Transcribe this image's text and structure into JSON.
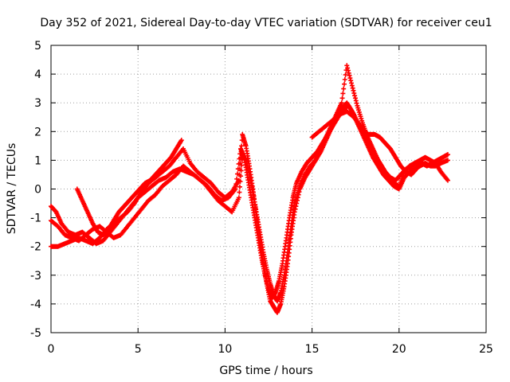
{
  "chart_data": {
    "type": "scatter",
    "title": "Day 352 of 2021, Sidereal Day-to-day VTEC variation (SDTVAR) for receiver ceu1",
    "xlabel": "GPS time / hours",
    "ylabel": "SDTVAR / TECUs",
    "xlim": [
      0,
      25
    ],
    "ylim": [
      -5,
      5
    ],
    "x_ticks": [
      "0",
      "5",
      "10",
      "15",
      "20",
      "25"
    ],
    "y_ticks": [
      "-5",
      "-4",
      "-3",
      "-2",
      "-1",
      "0",
      "1",
      "2",
      "3",
      "4",
      "5"
    ],
    "grid": true,
    "marker": "+",
    "color": "#ff0000",
    "series": [
      {
        "x": [
          0.0,
          0.3,
          0.6,
          1.0,
          1.4,
          1.8,
          2.2,
          2.6,
          3.0,
          3.4,
          3.8,
          4.2,
          4.6,
          5.0,
          5.4,
          5.8,
          6.2,
          6.6,
          7.0,
          7.4,
          7.8,
          8.2,
          8.6,
          9.0,
          9.4,
          9.8,
          10.2,
          10.6,
          10.9,
          11.1,
          11.3,
          11.5,
          11.7,
          11.9,
          12.1,
          12.3,
          12.5,
          12.7,
          12.9,
          13.1,
          13.3,
          13.5,
          13.7,
          13.9,
          14.1,
          14.4,
          14.7,
          15.0,
          15.3,
          15.6,
          15.9,
          16.2,
          16.5,
          16.8,
          17.1,
          17.4,
          17.7,
          18.0,
          18.3,
          18.6,
          18.9,
          19.2,
          19.5,
          19.8,
          20.1,
          20.4,
          20.7,
          21.0,
          21.3,
          21.6,
          21.9,
          22.2,
          22.5,
          22.8
        ],
        "y": [
          -0.6,
          -0.8,
          -1.2,
          -1.5,
          -1.6,
          -1.5,
          -1.7,
          -1.9,
          -1.8,
          -1.5,
          -1.2,
          -0.9,
          -0.6,
          -0.3,
          -0.1,
          0.1,
          0.3,
          0.4,
          0.6,
          0.7,
          0.6,
          0.5,
          0.3,
          0.1,
          -0.2,
          -0.4,
          -0.3,
          0.0,
          1.4,
          1.1,
          0.4,
          -0.3,
          -1.0,
          -1.7,
          -2.4,
          -3.0,
          -3.5,
          -3.8,
          -3.6,
          -3.2,
          -2.6,
          -1.8,
          -1.0,
          -0.3,
          0.2,
          0.6,
          0.9,
          1.1,
          1.3,
          1.6,
          1.9,
          2.2,
          2.5,
          2.8,
          2.9,
          2.6,
          2.2,
          1.9,
          1.6,
          1.2,
          0.9,
          0.6,
          0.4,
          0.3,
          0.5,
          0.7,
          0.8,
          0.9,
          0.9,
          0.8,
          0.9,
          1.0,
          1.1,
          1.2
        ]
      },
      {
        "x": [
          0.0,
          0.4,
          0.8,
          1.2,
          1.6,
          2.0,
          2.4,
          2.8,
          3.2,
          3.6,
          4.0,
          4.4,
          4.8,
          5.2,
          5.6,
          6.0,
          6.4,
          6.8,
          7.2,
          7.6,
          8.0,
          8.4,
          8.8,
          9.2,
          9.6,
          10.0,
          10.4,
          10.8,
          11.0,
          11.2,
          11.4,
          11.6,
          11.8,
          12.0,
          12.2,
          12.4,
          12.6,
          12.8,
          13.0,
          13.2,
          13.4,
          13.6,
          13.8,
          14.0,
          14.3,
          14.6,
          14.9,
          15.2,
          15.5,
          15.8,
          16.1,
          16.4,
          16.7,
          17.0,
          17.3,
          17.6,
          17.9,
          18.2,
          18.5,
          18.8,
          19.1,
          19.4,
          19.7,
          20.0,
          20.3,
          20.6,
          20.9,
          21.2,
          21.5,
          21.8,
          22.1,
          22.4,
          22.8
        ],
        "y": [
          -1.1,
          -1.3,
          -1.6,
          -1.7,
          -1.8,
          -1.6,
          -1.4,
          -1.3,
          -1.5,
          -1.7,
          -1.6,
          -1.3,
          -1.0,
          -0.7,
          -0.4,
          -0.2,
          0.1,
          0.3,
          0.5,
          0.8,
          0.6,
          0.4,
          0.2,
          -0.1,
          -0.4,
          -0.6,
          -0.8,
          -0.3,
          1.2,
          1.0,
          0.5,
          -0.1,
          -0.8,
          -1.5,
          -2.2,
          -2.8,
          -3.3,
          -3.7,
          -3.9,
          -3.6,
          -3.0,
          -2.2,
          -1.3,
          -0.5,
          0.1,
          0.5,
          0.8,
          1.0,
          1.3,
          1.7,
          2.1,
          2.5,
          2.8,
          3.0,
          2.7,
          2.3,
          1.9,
          1.5,
          1.1,
          0.8,
          0.5,
          0.3,
          0.1,
          0.0,
          0.4,
          0.6,
          0.7,
          0.8,
          0.9,
          0.8,
          0.8,
          0.9,
          1.0
        ]
      },
      {
        "x": [
          0.0,
          0.4,
          0.8,
          1.2,
          1.6,
          2.0,
          2.4,
          2.8,
          3.2,
          3.6,
          4.0,
          4.4,
          4.8,
          5.2,
          5.6,
          6.0,
          6.4,
          6.8,
          7.2,
          7.6,
          8.0,
          8.4,
          8.8,
          9.2,
          9.6,
          10.0,
          10.4,
          10.8,
          11.0,
          11.2,
          11.4,
          11.6,
          11.8,
          12.0,
          12.2,
          12.4,
          12.6,
          12.8,
          13.0,
          13.2,
          13.4,
          13.6,
          13.8,
          14.0,
          14.3,
          14.6,
          14.9,
          15.2,
          15.5,
          15.8,
          16.1,
          16.4,
          16.7,
          17.0,
          17.3,
          17.6,
          17.9,
          18.2,
          18.5,
          18.8,
          19.1,
          19.4,
          19.7,
          20.0,
          20.3,
          20.6,
          20.9,
          21.2,
          21.5,
          21.8,
          22.1,
          22.4,
          22.8
        ],
        "y": [
          -2.0,
          -2.0,
          -1.9,
          -1.8,
          -1.7,
          -1.8,
          -1.9,
          -1.7,
          -1.4,
          -1.2,
          -1.0,
          -0.8,
          -0.5,
          -0.1,
          0.2,
          0.4,
          0.6,
          0.8,
          1.1,
          1.4,
          0.9,
          0.6,
          0.4,
          0.2,
          -0.1,
          -0.3,
          -0.1,
          0.3,
          1.9,
          1.5,
          0.8,
          0.0,
          -0.9,
          -1.8,
          -2.6,
          -3.3,
          -3.9,
          -4.1,
          -4.3,
          -4.0,
          -3.4,
          -2.6,
          -1.6,
          -0.8,
          0.0,
          0.4,
          0.7,
          1.0,
          1.4,
          1.8,
          2.2,
          2.6,
          3.0,
          4.3,
          3.6,
          2.9,
          2.3,
          1.8,
          1.4,
          1.0,
          0.7,
          0.4,
          0.2,
          0.1,
          0.6,
          0.8,
          0.9,
          1.0,
          1.1,
          1.0,
          0.9,
          0.6,
          0.3
        ]
      },
      {
        "x": [
          1.5,
          1.8,
          2.1,
          2.4,
          2.7,
          3.0,
          3.3,
          3.6,
          3.9,
          4.2,
          4.5,
          4.8,
          5.1,
          5.4,
          5.7,
          6.0,
          6.3,
          6.6,
          6.9,
          7.2,
          7.5,
          15.0,
          15.4,
          15.8,
          16.2,
          16.6,
          17.0,
          17.4,
          17.8,
          18.2,
          18.6,
          18.9,
          19.2,
          19.5,
          19.8,
          20.1,
          20.4,
          20.7,
          21.0,
          21.3
        ],
        "y": [
          0.0,
          -0.4,
          -0.8,
          -1.2,
          -1.5,
          -1.6,
          -1.4,
          -1.1,
          -0.8,
          -0.6,
          -0.4,
          -0.2,
          0.0,
          0.2,
          0.3,
          0.5,
          0.7,
          0.9,
          1.1,
          1.4,
          1.7,
          1.8,
          2.0,
          2.2,
          2.4,
          2.6,
          2.7,
          2.5,
          2.2,
          1.9,
          1.9,
          1.8,
          1.6,
          1.4,
          1.1,
          0.8,
          0.6,
          0.5,
          0.7,
          1.0
        ]
      }
    ]
  }
}
